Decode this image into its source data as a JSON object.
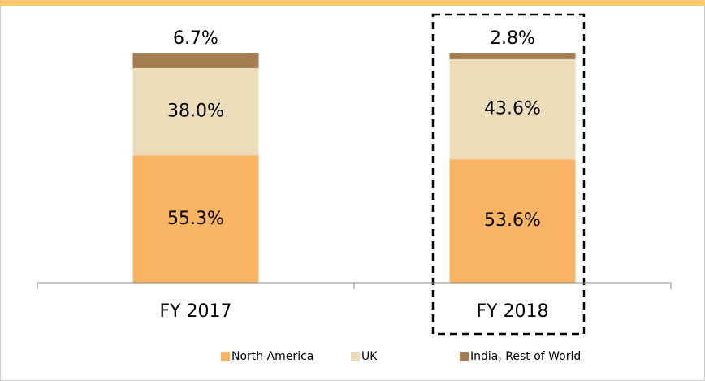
{
  "chart_data": {
    "type": "stacked_bar",
    "categories": [
      "FY 2017",
      "FY 2018"
    ],
    "series": [
      {
        "name": "North America",
        "color": "#f8b462",
        "values": [
          55.3,
          53.6
        ],
        "value_labels": [
          "55.3%",
          "53.6%"
        ]
      },
      {
        "name": "UK",
        "color": "#ecdcba",
        "values": [
          38.0,
          43.6
        ],
        "value_labels": [
          "38.0%",
          "43.6%"
        ]
      },
      {
        "name": "India, Rest of World",
        "color": "#a57c4f",
        "values": [
          6.7,
          2.8
        ],
        "value_labels": [
          "6.7%",
          "2.8%"
        ]
      }
    ],
    "ylim": [
      0,
      100
    ],
    "legend": "bottom"
  }
}
